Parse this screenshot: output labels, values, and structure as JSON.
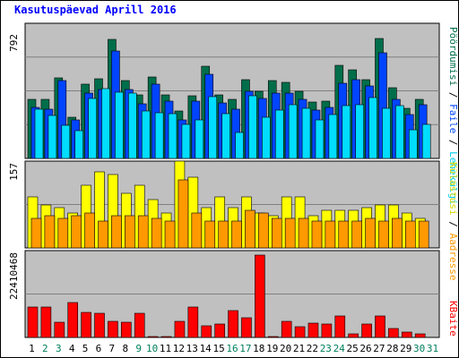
{
  "chart_data": {
    "type": "bar",
    "title": "Kasutuspäevad Aprill 2016",
    "categories": [
      "1",
      "2",
      "3",
      "4",
      "5",
      "6",
      "7",
      "8",
      "9",
      "10",
      "11",
      "12",
      "13",
      "14",
      "15",
      "16",
      "17",
      "18",
      "19",
      "20",
      "21",
      "22",
      "23",
      "24",
      "25",
      "26",
      "27",
      "28",
      "29",
      "30",
      "31"
    ],
    "weekend_days": [
      "2",
      "3",
      "9",
      "10",
      "16",
      "17",
      "23",
      "24",
      "30",
      "31"
    ],
    "panels": [
      {
        "name": "top",
        "max_label": "792",
        "ylim": [
          0,
          792
        ],
        "series": [
          {
            "name": "Pöördumisi",
            "color": "#006e4a",
            "values": [
              350,
              350,
              480,
              245,
              440,
              475,
              705,
              460,
              380,
              485,
              380,
              280,
              370,
              550,
              380,
              350,
              470,
              400,
              460,
              450,
              400,
              335,
              340,
              555,
              525,
              470,
              710,
              420,
              300,
              350,
              0
            ]
          },
          {
            "name": "Failid",
            "color": "#0044ff",
            "values": [
              305,
              290,
              465,
              230,
              390,
              410,
              640,
              410,
              325,
              440,
              340,
              230,
              340,
              500,
              330,
              290,
              400,
              355,
              390,
              390,
              350,
              285,
              305,
              445,
              470,
              430,
              625,
              350,
              260,
              320,
              0
            ]
          },
          {
            "name": "Lehekülgi",
            "color": "#00ddff",
            "values": [
              290,
              255,
              195,
              165,
              355,
              415,
              395,
              390,
              280,
              270,
              265,
              200,
              230,
              365,
              265,
              155,
              370,
              245,
              285,
              320,
              300,
              230,
              260,
              315,
              320,
              360,
              300,
              315,
              170,
              200,
              0
            ]
          }
        ]
      },
      {
        "name": "middle",
        "max_label": "157",
        "ylim": [
          0,
          157
        ],
        "series": [
          {
            "name": "Külastusi",
            "color": "#ffff00",
            "values": [
              95,
              80,
              75,
              65,
              115,
              140,
              135,
              100,
              115,
              90,
              65,
              160,
              130,
              75,
              95,
              75,
              95,
              65,
              60,
              95,
              95,
              60,
              70,
              70,
              70,
              75,
              80,
              80,
              65,
              55,
              0
            ]
          },
          {
            "name": "Aadresse",
            "color": "#ff9900",
            "values": [
              55,
              60,
              55,
              60,
              65,
              50,
              60,
              60,
              60,
              55,
              50,
              125,
              65,
              50,
              50,
              50,
              70,
              65,
              55,
              55,
              55,
              50,
              50,
              50,
              50,
              55,
              50,
              55,
              50,
              50,
              0
            ]
          }
        ]
      },
      {
        "name": "bottom",
        "max_label": "22410468",
        "ylim": [
          0,
          22410468
        ],
        "series": [
          {
            "name": "KBaite",
            "color": "#ff0000",
            "values": [
              8050000,
              8050000,
              3900000,
              9100000,
              6650000,
              6300000,
              4250000,
              3900000,
              6300000,
              350000,
              350000,
              4250000,
              8050000,
              3150000,
              3500000,
              7000000,
              5250000,
              21700000,
              350000,
              4200000,
              2800000,
              3850000,
              3500000,
              5600000,
              1050000,
              3500000,
              5600000,
              2450000,
              1400000,
              1050000,
              0
            ]
          }
        ]
      }
    ],
    "legend_right_top": {
      "pages": "Pöördumisi",
      "sep1": "/",
      "files": "Faile",
      "sep2": "/",
      "visits": "Lehekülgi"
    },
    "legend_right_middle": {
      "visits": "Külastusi",
      "sep": "/",
      "sites": "Aadresse"
    },
    "legend_right_bottom": {
      "kbytes": "KBaite"
    },
    "colors": {
      "panel_bg": "#c0c0c0",
      "grid": "#808080",
      "weekday_label": "#000000",
      "weekend_label": "#00805c",
      "title": "#0000ff"
    }
  }
}
